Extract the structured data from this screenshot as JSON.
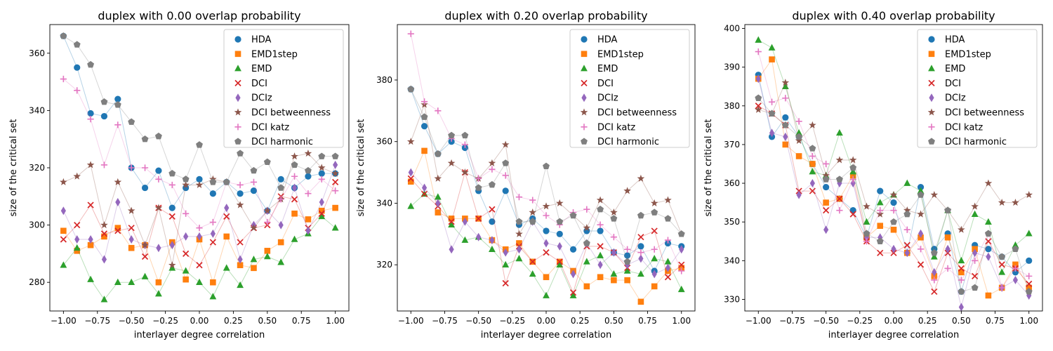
{
  "figure": {
    "legend_labels": [
      "HDA",
      "EMD1step",
      "EMD",
      "DCI",
      "DCIz",
      "DCI betweenness",
      "DCI katz",
      "DCI harmonic"
    ]
  },
  "chart_data": [
    {
      "type": "scatter",
      "title": "duplex with 0.00 overlap probability",
      "xlabel": "interlayer degree correlation",
      "ylabel": "size of the critical set",
      "xlim": [
        -1.1,
        1.1
      ],
      "ylim": [
        270,
        370
      ],
      "xticks": [
        -1.0,
        -0.75,
        -0.5,
        -0.25,
        0.0,
        0.25,
        0.5,
        0.75,
        1.0
      ],
      "xtick_labels": [
        "−1.00",
        "−0.75",
        "−0.50",
        "−0.25",
        "0.00",
        "0.25",
        "0.50",
        "0.75",
        "1.00"
      ],
      "yticks": [
        280,
        300,
        320,
        340,
        360
      ],
      "grid": false,
      "legend_position": "top-right",
      "x": [
        -1.0,
        -0.9,
        -0.8,
        -0.7,
        -0.6,
        -0.5,
        -0.4,
        -0.3,
        -0.2,
        -0.1,
        0.0,
        0.1,
        0.2,
        0.3,
        0.4,
        0.5,
        0.6,
        0.7,
        0.8,
        0.9,
        1.0
      ],
      "series": [
        {
          "name": "HDA",
          "values": [
            366,
            355,
            339,
            338,
            344,
            320,
            313,
            319,
            306,
            313,
            316,
            311,
            315,
            311,
            312,
            305,
            316,
            313,
            317,
            318,
            318
          ]
        },
        {
          "name": "EMD1step",
          "values": [
            298,
            291,
            293,
            296,
            299,
            292,
            293,
            280,
            294,
            281,
            295,
            280,
            296,
            286,
            285,
            291,
            294,
            304,
            302,
            305,
            306
          ]
        },
        {
          "name": "EMD",
          "values": [
            286,
            292,
            281,
            274,
            280,
            280,
            282,
            276,
            285,
            284,
            280,
            275,
            285,
            279,
            288,
            289,
            287,
            295,
            297,
            303,
            299
          ]
        },
        {
          "name": "DCI",
          "values": [
            295,
            300,
            307,
            297,
            298,
            299,
            289,
            306,
            303,
            290,
            286,
            294,
            303,
            294,
            299,
            300,
            310,
            309,
            299,
            304,
            315
          ]
        },
        {
          "name": "DCIz",
          "values": [
            305,
            295,
            295,
            288,
            308,
            295,
            293,
            292,
            293,
            296,
            296,
            297,
            306,
            288,
            300,
            305,
            300,
            313,
            298,
            308,
            321
          ]
        },
        {
          "name": "DCI betweenness",
          "values": [
            315,
            317,
            321,
            300,
            315,
            305,
            293,
            306,
            286,
            314,
            314,
            316,
            315,
            307,
            299,
            305,
            309,
            324,
            325,
            320,
            318
          ]
        },
        {
          "name": "DCI katz",
          "values": [
            351,
            347,
            337,
            321,
            335,
            320,
            320,
            316,
            314,
            304,
            299,
            301,
            315,
            314,
            315,
            301,
            309,
            317,
            311,
            316,
            312
          ]
        },
        {
          "name": "DCI harmonic",
          "values": [
            366,
            363,
            356,
            343,
            342,
            336,
            330,
            331,
            318,
            316,
            328,
            315,
            315,
            325,
            319,
            322,
            313,
            321,
            319,
            324,
            324
          ]
        }
      ]
    },
    {
      "type": "scatter",
      "title": "duplex with 0.20 overlap probability",
      "xlabel": "interlayer degree correlation",
      "ylabel": "size of the critical set",
      "xlim": [
        -1.1,
        1.1
      ],
      "ylim": [
        305,
        398
      ],
      "xticks": [
        -1.0,
        -0.75,
        -0.5,
        -0.25,
        0.0,
        0.25,
        0.5,
        0.75,
        1.0
      ],
      "xtick_labels": [
        "−1.00",
        "−0.75",
        "−0.50",
        "−0.25",
        "0.00",
        "0.25",
        "0.50",
        "0.75",
        "1.00"
      ],
      "yticks": [
        320,
        340,
        360,
        380
      ],
      "grid": false,
      "legend_position": "top-right",
      "x": [
        -1.0,
        -0.9,
        -0.8,
        -0.7,
        -0.6,
        -0.5,
        -0.4,
        -0.3,
        -0.2,
        -0.1,
        0.0,
        0.1,
        0.2,
        0.3,
        0.4,
        0.5,
        0.6,
        0.7,
        0.8,
        0.9,
        1.0
      ],
      "series": [
        {
          "name": "HDA",
          "values": [
            377,
            365,
            356,
            360,
            358,
            344,
            334,
            344,
            333,
            335,
            331,
            330,
            325,
            331,
            331,
            324,
            323,
            326,
            318,
            327,
            326
          ]
        },
        {
          "name": "EMD1step",
          "values": [
            347,
            357,
            337,
            335,
            335,
            335,
            328,
            325,
            327,
            321,
            316,
            321,
            318,
            313,
            316,
            315,
            315,
            308,
            313,
            318,
            319
          ]
        },
        {
          "name": "EMD",
          "values": [
            339,
            343,
            342,
            333,
            328,
            329,
            325,
            320,
            322,
            317,
            310,
            320,
            310,
            321,
            323,
            317,
            318,
            317,
            322,
            321,
            312
          ]
        },
        {
          "name": "DCI",
          "values": [
            348,
            343,
            339,
            334,
            350,
            335,
            338,
            314,
            326,
            321,
            324,
            321,
            311,
            326,
            326,
            324,
            319,
            329,
            331,
            316,
            320
          ]
        },
        {
          "name": "DCIz",
          "values": [
            350,
            345,
            340,
            325,
            334,
            329,
            328,
            324,
            325,
            334,
            327,
            326,
            317,
            327,
            320,
            324,
            320,
            322,
            317,
            319,
            325
          ]
        },
        {
          "name": "DCI betweenness",
          "values": [
            360,
            372,
            348,
            353,
            350,
            348,
            353,
            359,
            330,
            337,
            339,
            340,
            336,
            332,
            341,
            337,
            344,
            348,
            340,
            341,
            330
          ]
        },
        {
          "name": "DCI katz",
          "values": [
            395,
            373,
            370,
            361,
            359,
            348,
            351,
            349,
            342,
            341,
            336,
            333,
            337,
            338,
            333,
            329,
            325,
            324,
            325,
            328,
            318
          ]
        },
        {
          "name": "DCI harmonic",
          "values": [
            377,
            368,
            356,
            362,
            362,
            345,
            346,
            353,
            334,
            334,
            352,
            334,
            336,
            327,
            338,
            335,
            321,
            336,
            337,
            335,
            330
          ]
        }
      ]
    },
    {
      "type": "scatter",
      "title": "duplex with 0.40 overlap probability",
      "xlabel": "interlayer degree correlation",
      "ylabel": "size of the critical set",
      "xlim": [
        -1.1,
        1.1
      ],
      "ylim": [
        327,
        401
      ],
      "xticks": [
        -1.0,
        -0.75,
        -0.5,
        -0.25,
        0.0,
        0.25,
        0.5,
        0.75,
        1.0
      ],
      "xtick_labels": [
        "−1.00",
        "−0.75",
        "−0.50",
        "−0.25",
        "0.00",
        "0.25",
        "0.50",
        "0.75",
        "1.00"
      ],
      "yticks": [
        330,
        340,
        350,
        360,
        370,
        380,
        390,
        400
      ],
      "grid": false,
      "legend_position": "top-right",
      "x": [
        -1.0,
        -0.9,
        -0.8,
        -0.7,
        -0.6,
        -0.5,
        -0.4,
        -0.3,
        -0.2,
        -0.1,
        0.0,
        0.1,
        0.2,
        0.3,
        0.4,
        0.5,
        0.6,
        0.7,
        0.8,
        0.9,
        1.0
      ],
      "series": [
        {
          "name": "HDA",
          "values": [
            388,
            372,
            377,
            372,
            365,
            359,
            356,
            353,
            346,
            358,
            355,
            342,
            359,
            343,
            347,
            332,
            344,
            343,
            341,
            337,
            340
          ]
        },
        {
          "name": "EMD1step",
          "values": [
            387,
            392,
            370,
            367,
            365,
            355,
            356,
            362,
            346,
            349,
            348,
            342,
            346,
            336,
            346,
            337,
            343,
            331,
            333,
            339,
            333
          ]
        },
        {
          "name": "EMD",
          "values": [
            397,
            395,
            385,
            373,
            363,
            362,
            373,
            363,
            350,
            355,
            357,
            360,
            358,
            341,
            353,
            340,
            352,
            350,
            337,
            344,
            347
          ]
        },
        {
          "name": "DCI",
          "values": [
            380,
            378,
            375,
            358,
            358,
            353,
            356,
            352,
            345,
            342,
            342,
            344,
            339,
            332,
            342,
            338,
            336,
            345,
            339,
            338,
            334
          ]
        },
        {
          "name": "DCIz",
          "values": [
            387,
            373,
            372,
            357,
            360,
            348,
            360,
            360,
            346,
            346,
            343,
            342,
            347,
            337,
            343,
            328,
            342,
            341,
            333,
            335,
            331
          ]
        },
        {
          "name": "DCI betweenness",
          "values": [
            379,
            378,
            386,
            371,
            375,
            362,
            366,
            366,
            354,
            352,
            357,
            353,
            352,
            357,
            353,
            348,
            354,
            360,
            355,
            355,
            357
          ]
        },
        {
          "name": "DCI katz",
          "values": [
            394,
            381,
            382,
            376,
            367,
            365,
            353,
            361,
            345,
            353,
            353,
            348,
            343,
            335,
            338,
            335,
            340,
            347,
            333,
            338,
            336
          ]
        },
        {
          "name": "DCI harmonic",
          "values": [
            382,
            378,
            375,
            372,
            369,
            361,
            361,
            364,
            347,
            345,
            350,
            352,
            357,
            342,
            353,
            332,
            333,
            347,
            341,
            343,
            332
          ]
        }
      ]
    }
  ]
}
